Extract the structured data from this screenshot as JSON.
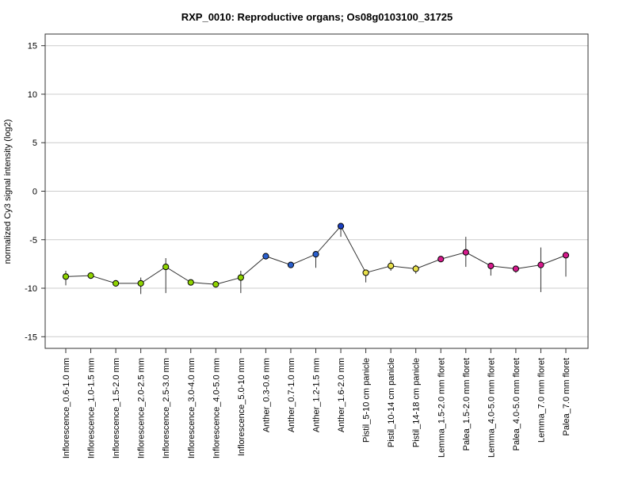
{
  "chart_data": {
    "type": "line",
    "title": "RXP_0010: Reproductive organs; Os08g0103100_31725",
    "xlabel": "",
    "ylabel": "normalized Cy3 signal intensity (log2)",
    "ylim": [
      -16.2,
      16.2
    ],
    "yticks": [
      -15,
      -10,
      -5,
      0,
      5,
      10,
      15
    ],
    "grid": true,
    "categories": [
      "Inflorescence_0.6-1.0 mm",
      "Inflorescence_1.0-1.5 mm",
      "Inflorescence_1.5-2.0 mm",
      "Inflorescence_2.0-2.5 mm",
      "Inflorescence_2.5-3.0 mm",
      "Inflorescence_3.0-4.0 mm",
      "Inflorescence_4.0-5.0 mm",
      "Inflorescence_5.0-10 mm",
      "Anther_0.3-0.6 mm",
      "Anther_0.7-1.0 mm",
      "Anther_1.2-1.5 mm",
      "Anther_1.6-2.0 mm",
      "Pistil_5-10 cm panicle",
      "Pistil_10-14 cm panicle",
      "Pistil_14-18 cm panicle",
      "Lemma_1.5-2.0 mm floret",
      "Palea_1.5-2.0 mm floret",
      "Lemma_4.0-5.0 mm floret",
      "Palea_4.0-5.0 mm floret",
      "Lemma_7.0 mm floret",
      "Palea_7.0 mm floret"
    ],
    "series": [
      {
        "values": [
          -8.8,
          -8.7,
          -9.5,
          -9.5,
          -7.8,
          -9.4,
          -9.6,
          -8.9,
          -6.7,
          -7.6,
          -6.5,
          -3.6,
          -8.4,
          -7.7,
          -8.0,
          -7.0,
          -6.3,
          -7.7,
          -8.0,
          -7.6,
          -6.6
        ],
        "err_low": [
          -9.7,
          -8.9,
          -9.7,
          -10.6,
          -10.5,
          -9.6,
          -9.8,
          -10.5,
          -6.9,
          -7.8,
          -7.9,
          -4.7,
          -9.4,
          -8.2,
          -8.5,
          -7.2,
          -7.8,
          -8.7,
          -8.4,
          -10.4,
          -8.8
        ],
        "err_high": [
          -8.2,
          -8.5,
          -9.3,
          -8.9,
          -6.9,
          -9.2,
          -9.4,
          -8.2,
          -6.5,
          -7.4,
          -6.2,
          -3.3,
          -8.1,
          -7.1,
          -7.6,
          -6.7,
          -4.7,
          -7.4,
          -7.7,
          -5.8,
          -6.3
        ],
        "colors": [
          "#8fd400",
          "#8fd400",
          "#8fd400",
          "#8fd400",
          "#8fd400",
          "#8fd400",
          "#8fd400",
          "#8fd400",
          "#2a5fcc",
          "#2a5fcc",
          "#2a5fcc",
          "#1a3fc0",
          "#e8e04a",
          "#e8e04a",
          "#e8e04a",
          "#d61a8c",
          "#d61a8c",
          "#d61a8c",
          "#d61a8c",
          "#d61a8c",
          "#d61a8c"
        ]
      }
    ]
  }
}
